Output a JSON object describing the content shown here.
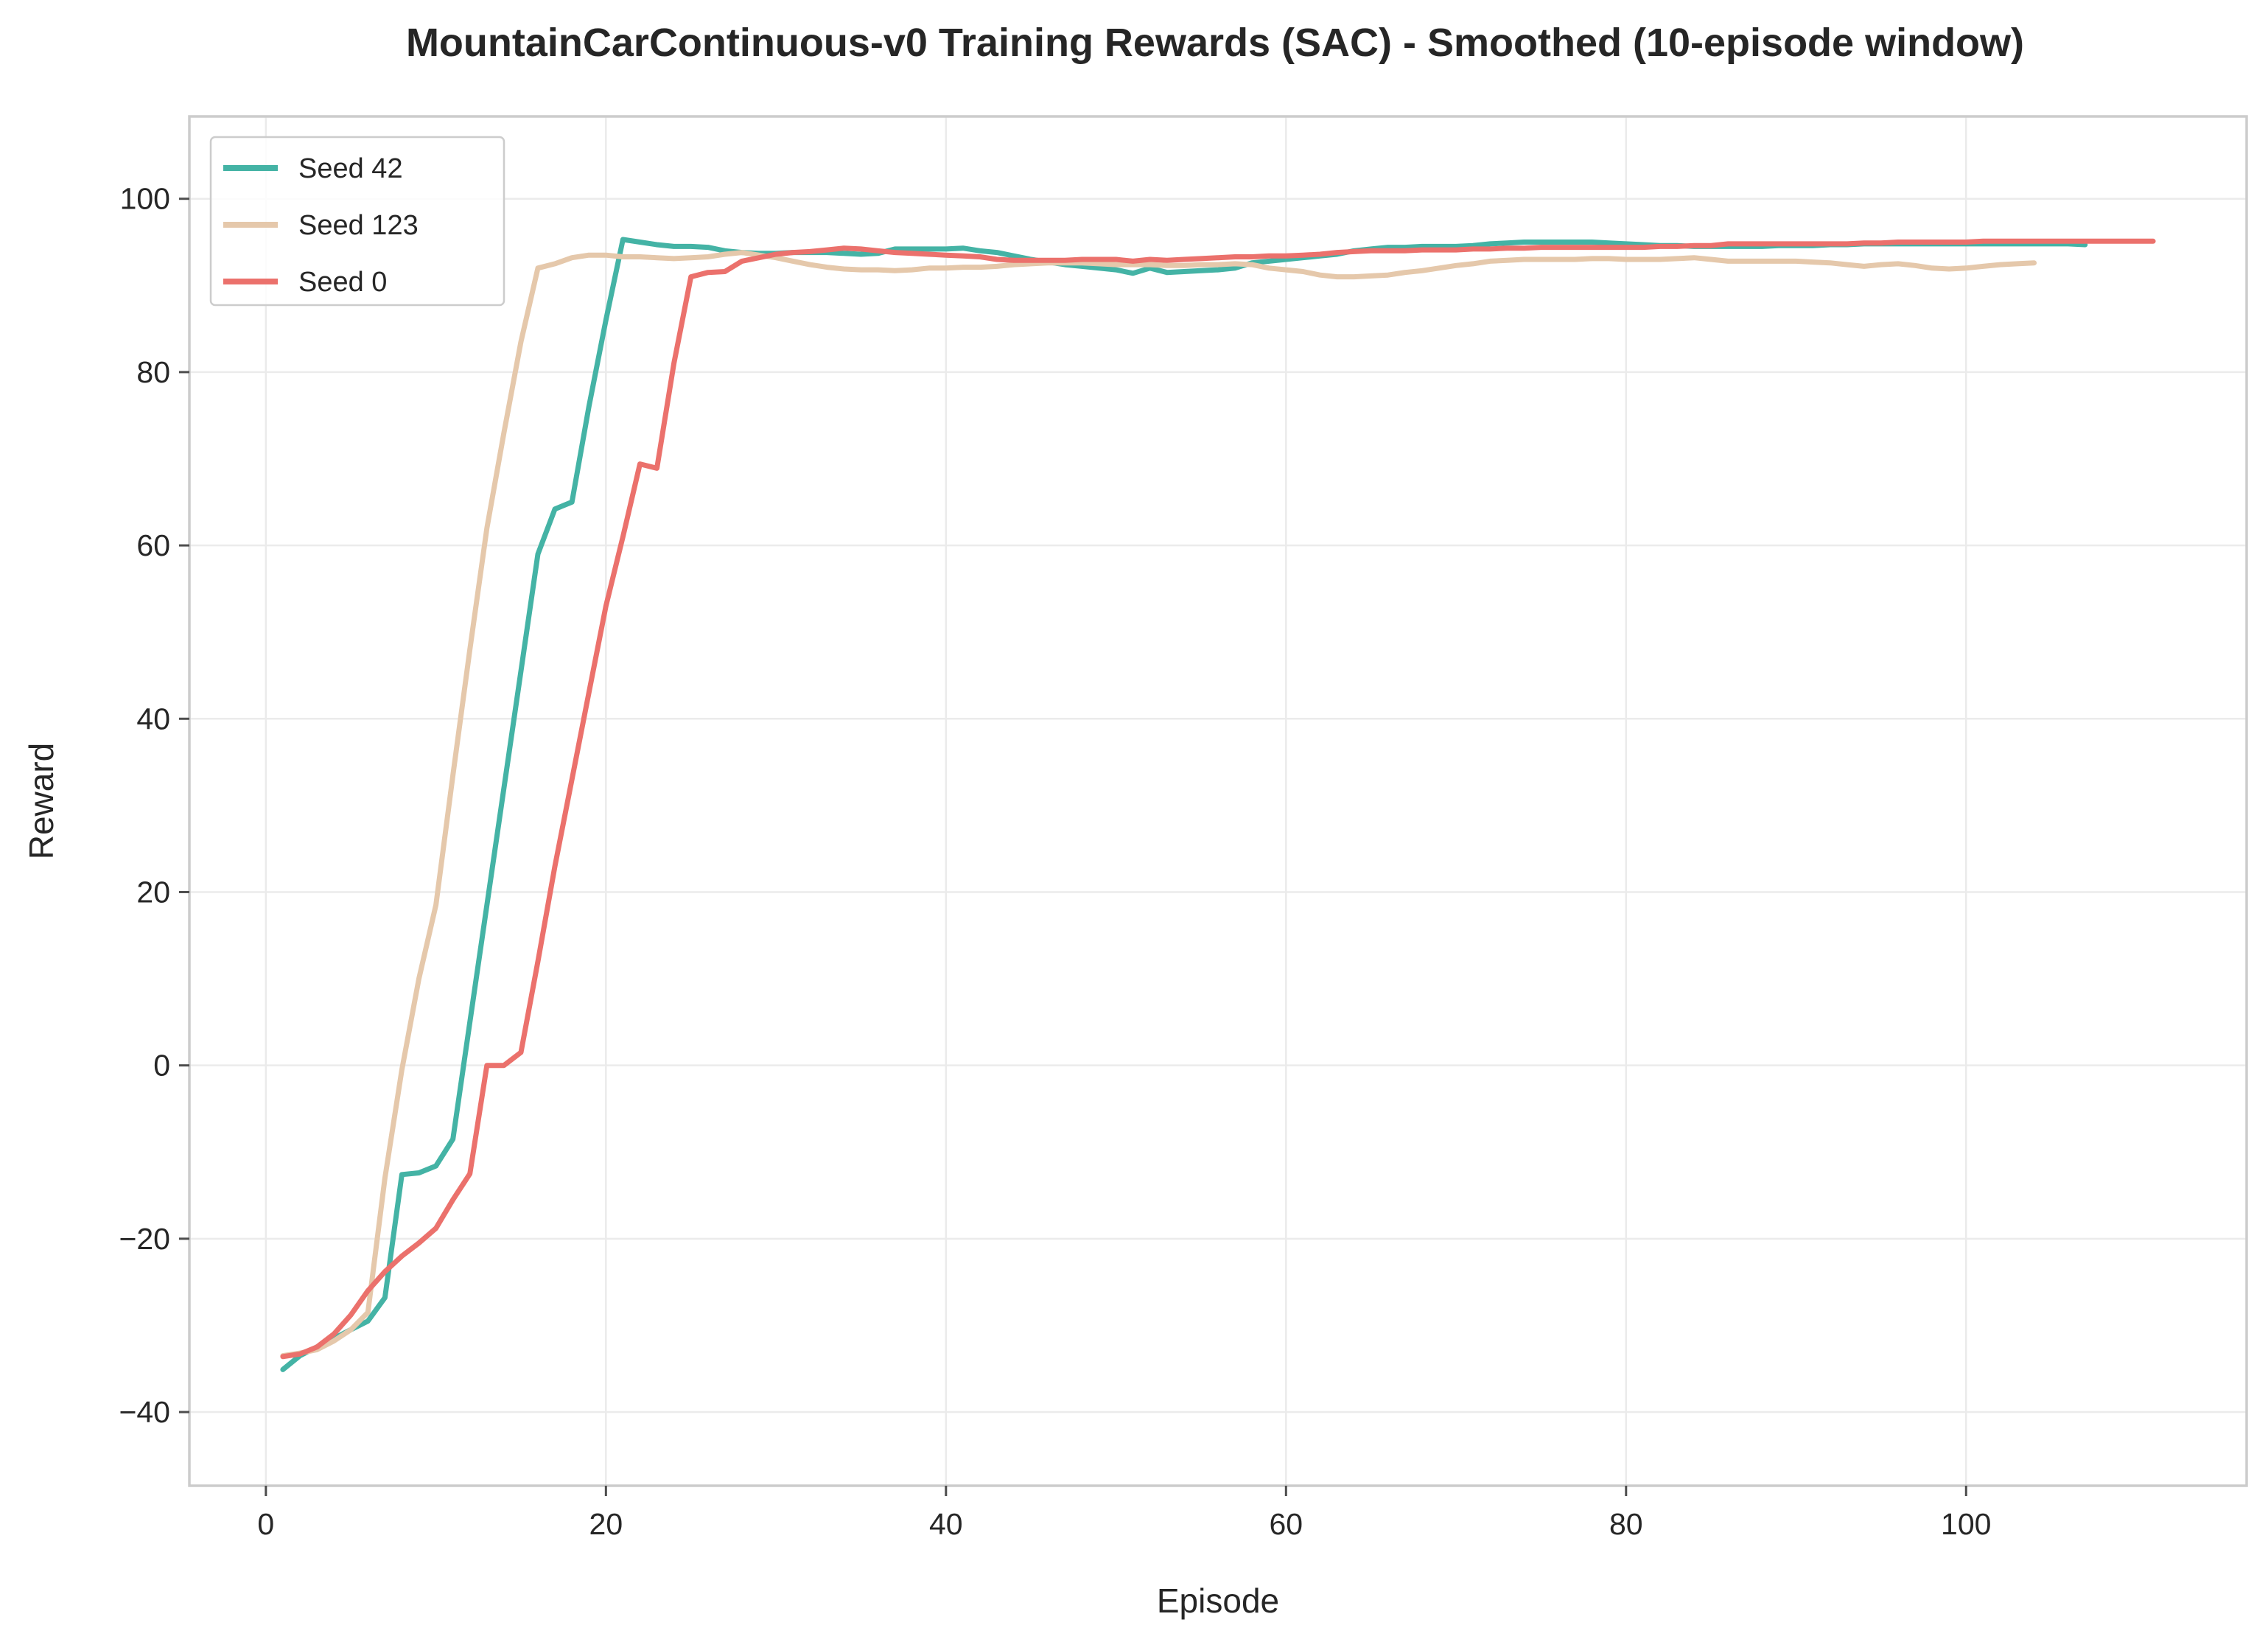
{
  "chart_data": {
    "type": "line",
    "title": "MountainCarContinuous-v0 Training Rewards (SAC) - Smoothed (10-episode window)",
    "xlabel": "Episode",
    "ylabel": "Reward",
    "xlim": [
      -4.5,
      116.5
    ],
    "ylim": [
      -48.5,
      109.5
    ],
    "xticks": [
      0,
      20,
      40,
      60,
      80,
      100
    ],
    "yticks": [
      -40,
      -20,
      0,
      20,
      40,
      60,
      80,
      100
    ],
    "xtick_labels": [
      "0",
      "20",
      "40",
      "60",
      "80",
      "100"
    ],
    "ytick_labels": [
      "−40",
      "−20",
      "0",
      "20",
      "40",
      "60",
      "80",
      "100"
    ],
    "grid": true,
    "legend_position": "top-left",
    "series": [
      {
        "name": "Seed 42",
        "color": "#44b3a5",
        "x": [
          1,
          2,
          3,
          4,
          5,
          6,
          7,
          8,
          9,
          10,
          11,
          12,
          13,
          14,
          15,
          16,
          17,
          18,
          19,
          20,
          21,
          22,
          23,
          24,
          25,
          26,
          27,
          28,
          29,
          30,
          31,
          32,
          33,
          34,
          35,
          36,
          37,
          38,
          39,
          40,
          41,
          42,
          43,
          44,
          45,
          46,
          47,
          48,
          49,
          50,
          51,
          52,
          53,
          54,
          55,
          56,
          57,
          58,
          59,
          60,
          61,
          62,
          63,
          64,
          65,
          66,
          67,
          68,
          69,
          70,
          71,
          72,
          73,
          74,
          75,
          76,
          77,
          78,
          79,
          80,
          81,
          82,
          83,
          84,
          85,
          86,
          87,
          88,
          89,
          90,
          91,
          92,
          93,
          94,
          95,
          96,
          97,
          98,
          99,
          100,
          101,
          102,
          103,
          104,
          105,
          106,
          107
        ],
        "values": [
          -35.1,
          -33.5,
          -32.5,
          -31.5,
          -30.5,
          -29.5,
          -26.8,
          -12.6,
          -12.4,
          -11.6,
          -8.5,
          5.0,
          18.5,
          32.0,
          45.5,
          59.0,
          64.2,
          65.0,
          76.0,
          86.0,
          95.3,
          95.0,
          94.7,
          94.5,
          94.5,
          94.4,
          94.0,
          93.8,
          93.7,
          93.7,
          93.8,
          93.8,
          93.8,
          93.7,
          93.6,
          93.7,
          94.2,
          94.2,
          94.2,
          94.2,
          94.3,
          94.0,
          93.8,
          93.4,
          93.0,
          92.7,
          92.4,
          92.2,
          92.0,
          91.8,
          91.4,
          92.0,
          91.5,
          91.6,
          91.7,
          91.8,
          92.0,
          92.6,
          92.8,
          93.0,
          93.2,
          93.4,
          93.6,
          94.0,
          94.2,
          94.4,
          94.4,
          94.5,
          94.5,
          94.5,
          94.6,
          94.8,
          94.9,
          95.0,
          95.0,
          95.0,
          95.0,
          95.0,
          94.9,
          94.8,
          94.7,
          94.6,
          94.6,
          94.5,
          94.5,
          94.5,
          94.5,
          94.5,
          94.6,
          94.6,
          94.6,
          94.7,
          94.7,
          94.8,
          94.8,
          94.8,
          94.8,
          94.8,
          94.8,
          94.8,
          94.8,
          94.8,
          94.8,
          94.8,
          94.8,
          94.8,
          94.7
        ]
      },
      {
        "name": "Seed 123",
        "color": "#e5c8ab",
        "x": [
          1,
          2,
          3,
          4,
          5,
          6,
          7,
          8,
          9,
          10,
          11,
          12,
          13,
          14,
          15,
          16,
          17,
          18,
          19,
          20,
          21,
          22,
          23,
          24,
          25,
          26,
          27,
          28,
          29,
          30,
          31,
          32,
          33,
          34,
          35,
          36,
          37,
          38,
          39,
          40,
          41,
          42,
          43,
          44,
          45,
          46,
          47,
          48,
          49,
          50,
          51,
          52,
          53,
          54,
          55,
          56,
          57,
          58,
          59,
          60,
          61,
          62,
          63,
          64,
          65,
          66,
          67,
          68,
          69,
          70,
          71,
          72,
          73,
          74,
          75,
          76,
          77,
          78,
          79,
          80,
          81,
          82,
          83,
          84,
          85,
          86,
          87,
          88,
          89,
          90,
          91,
          92,
          93,
          94,
          95,
          96,
          97,
          98,
          99,
          100,
          101,
          102,
          103,
          104
        ],
        "values": [
          -33.5,
          -33.2,
          -32.8,
          -31.8,
          -30.5,
          -28.5,
          -13.0,
          -0.5,
          10.0,
          18.5,
          33.5,
          48.0,
          62.0,
          73.0,
          83.5,
          92.0,
          92.5,
          93.2,
          93.5,
          93.5,
          93.3,
          93.3,
          93.2,
          93.1,
          93.2,
          93.3,
          93.6,
          93.8,
          93.5,
          93.2,
          92.8,
          92.4,
          92.1,
          91.9,
          91.8,
          91.8,
          91.7,
          91.8,
          92.0,
          92.0,
          92.1,
          92.1,
          92.2,
          92.4,
          92.5,
          92.6,
          92.6,
          92.6,
          92.5,
          92.4,
          92.4,
          92.4,
          92.3,
          92.3,
          92.4,
          92.4,
          92.5,
          92.4,
          92.0,
          91.8,
          91.6,
          91.2,
          91.0,
          91.0,
          91.1,
          91.2,
          91.5,
          91.7,
          92.0,
          92.3,
          92.5,
          92.8,
          92.9,
          93.0,
          93.0,
          93.0,
          93.0,
          93.1,
          93.1,
          93.0,
          93.0,
          93.0,
          93.1,
          93.2,
          93.0,
          92.8,
          92.8,
          92.8,
          92.8,
          92.8,
          92.7,
          92.6,
          92.4,
          92.2,
          92.4,
          92.5,
          92.3,
          92.0,
          91.9,
          92.0,
          92.2,
          92.4,
          92.5,
          92.6
        ]
      },
      {
        "name": "Seed 0",
        "color": "#eb716c",
        "x": [
          1,
          2,
          3,
          4,
          5,
          6,
          7,
          8,
          9,
          10,
          11,
          12,
          13,
          14,
          15,
          16,
          17,
          18,
          19,
          20,
          21,
          22,
          23,
          24,
          25,
          26,
          27,
          28,
          29,
          30,
          31,
          32,
          33,
          34,
          35,
          36,
          37,
          38,
          39,
          40,
          41,
          42,
          43,
          44,
          45,
          46,
          47,
          48,
          49,
          50,
          51,
          52,
          53,
          54,
          55,
          56,
          57,
          58,
          59,
          60,
          61,
          62,
          63,
          64,
          65,
          66,
          67,
          68,
          69,
          70,
          71,
          72,
          73,
          74,
          75,
          76,
          77,
          78,
          79,
          80,
          81,
          82,
          83,
          84,
          85,
          86,
          87,
          88,
          89,
          90,
          91,
          92,
          93,
          94,
          95,
          96,
          97,
          98,
          99,
          100,
          101,
          102,
          103,
          104,
          105,
          106,
          107,
          108,
          109,
          110,
          111
        ],
        "values": [
          -33.6,
          -33.3,
          -32.5,
          -31.0,
          -28.8,
          -26.0,
          -23.8,
          -22.0,
          -20.5,
          -18.8,
          -15.5,
          -12.5,
          0.0,
          0.0,
          1.5,
          12.0,
          23.0,
          33.0,
          43.0,
          53.0,
          61.0,
          69.4,
          68.9,
          81.0,
          91.0,
          91.5,
          91.6,
          92.8,
          93.2,
          93.6,
          93.8,
          93.9,
          94.1,
          94.3,
          94.2,
          94.0,
          93.8,
          93.7,
          93.6,
          93.5,
          93.4,
          93.3,
          93.0,
          92.9,
          92.9,
          92.9,
          92.9,
          93.0,
          93.0,
          93.0,
          92.8,
          93.0,
          92.9,
          93.0,
          93.1,
          93.2,
          93.3,
          93.3,
          93.4,
          93.4,
          93.5,
          93.6,
          93.8,
          93.9,
          94.0,
          94.0,
          94.0,
          94.1,
          94.1,
          94.1,
          94.2,
          94.2,
          94.3,
          94.3,
          94.4,
          94.4,
          94.4,
          94.4,
          94.4,
          94.4,
          94.4,
          94.5,
          94.5,
          94.6,
          94.6,
          94.8,
          94.8,
          94.8,
          94.8,
          94.8,
          94.8,
          94.8,
          94.8,
          94.9,
          94.9,
          95.0,
          95.0,
          95.0,
          95.0,
          95.0,
          95.1,
          95.1,
          95.1,
          95.1,
          95.1,
          95.1,
          95.1,
          95.1,
          95.1,
          95.1,
          95.1
        ]
      }
    ]
  }
}
